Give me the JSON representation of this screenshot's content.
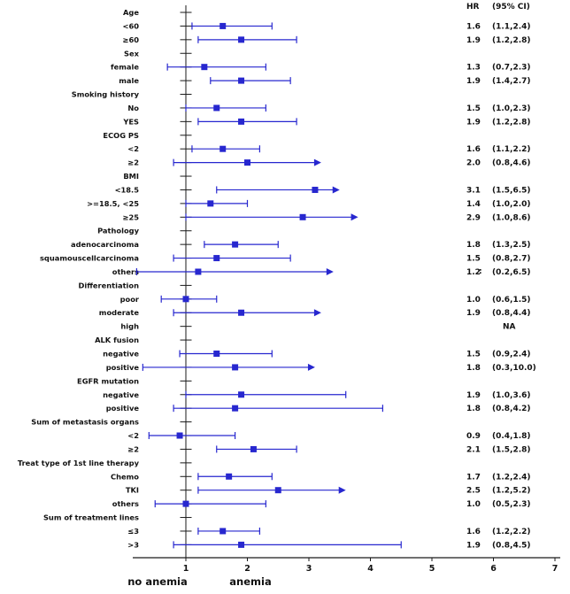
{
  "figure": {
    "hr_header": {
      "hr": "HR",
      "ci": "(95% CI)"
    },
    "group_labels": {
      "left": "no anemia",
      "right": "anemia"
    }
  },
  "chart_data": {
    "type": "forest",
    "accent_color": "#2727cf",
    "axis_color": "#1a1a1a",
    "reference_line": 1,
    "x_axis": {
      "ticks": [
        1,
        2,
        3,
        4,
        5,
        6,
        7
      ],
      "min": 0.15,
      "max": 7.2
    },
    "hr_header": {
      "hr": "HR",
      "ci": "(95% CI)"
    },
    "group_labels": {
      "left": "no anemia",
      "right": "anemia"
    },
    "rows": [
      {
        "label": "Age",
        "type": "header"
      },
      {
        "label": "<60",
        "type": "item",
        "hr": "1.6",
        "ci": "(1.1,2.4)",
        "low": 1.1,
        "point": 1.6,
        "high": 2.4,
        "arrow": false
      },
      {
        "label": "≥60",
        "type": "item",
        "hr": "1.9",
        "ci": "(1.2,2.8)",
        "low": 1.2,
        "point": 1.9,
        "high": 2.8,
        "arrow": false
      },
      {
        "label": "Sex",
        "type": "header"
      },
      {
        "label": "female",
        "type": "item",
        "hr": "1.3",
        "ci": "(0.7,2.3)",
        "low": 0.7,
        "point": 1.3,
        "high": 2.3,
        "arrow": false
      },
      {
        "label": "male",
        "type": "item",
        "hr": "1.9",
        "ci": "(1.4,2.7)",
        "low": 1.4,
        "point": 1.9,
        "high": 2.7,
        "arrow": false
      },
      {
        "label": "Smoking history",
        "type": "header"
      },
      {
        "label": "No",
        "type": "item",
        "hr": "1.5",
        "ci": "(1.0,2.3)",
        "low": 1.0,
        "point": 1.5,
        "high": 2.3,
        "arrow": false
      },
      {
        "label": "YES",
        "type": "item",
        "hr": "1.9",
        "ci": "(1.2,2.8)",
        "low": 1.2,
        "point": 1.9,
        "high": 2.8,
        "arrow": false
      },
      {
        "label": "ECOG PS",
        "type": "header"
      },
      {
        "label": "<2",
        "type": "item",
        "hr": "1.6",
        "ci": "(1.1,2.2)",
        "low": 1.1,
        "point": 1.6,
        "high": 2.2,
        "arrow": false
      },
      {
        "label": "≥2",
        "type": "item",
        "hr": "2.0",
        "ci": "(0.8,4.6)",
        "low": 0.8,
        "point": 2.0,
        "high": 3.2,
        "arrow": true
      },
      {
        "label": "BMI",
        "type": "header"
      },
      {
        "label": "<18.5",
        "type": "item",
        "hr": "3.1",
        "ci": "(1.5,6.5)",
        "low": 1.5,
        "point": 3.1,
        "high": 3.5,
        "arrow": true
      },
      {
        "label": ">=18.5, <25",
        "type": "item",
        "hr": "1.4",
        "ci": "(1.0,2.0)",
        "low": 1.0,
        "point": 1.4,
        "high": 2.0,
        "arrow": false
      },
      {
        "label": "≥25",
        "type": "item",
        "hr": "2.9",
        "ci": "(1.0,8.6)",
        "low": 1.0,
        "point": 2.9,
        "high": 3.8,
        "arrow": true
      },
      {
        "label": "Pathology",
        "type": "header"
      },
      {
        "label": "adenocarcinoma",
        "type": "item",
        "hr": "1.8",
        "ci": "(1.3,2.5)",
        "low": 1.3,
        "point": 1.8,
        "high": 2.5,
        "arrow": false
      },
      {
        "label": "squamouscellcarcinoma",
        "type": "item",
        "hr": "1.5",
        "ci": "(0.8,2.7)",
        "low": 0.8,
        "point": 1.5,
        "high": 2.7,
        "arrow": false
      },
      {
        "label": "others",
        "type": "item",
        "hr": "1.2",
        "ci": "(0.2,6.5)",
        "low": 0.2,
        "point": 1.2,
        "high": 3.4,
        "arrow": true,
        "stray": ":"
      },
      {
        "label": "Differentiation",
        "type": "header"
      },
      {
        "label": "poor",
        "type": "item",
        "hr": "1.0",
        "ci": "(0.6,1.5)",
        "low": 0.6,
        "point": 1.0,
        "high": 1.5,
        "arrow": false
      },
      {
        "label": "moderate",
        "type": "item",
        "hr": "1.9",
        "ci": "(0.8,4.4)",
        "low": 0.8,
        "point": 1.9,
        "high": 3.2,
        "arrow": true
      },
      {
        "label": "high",
        "type": "item",
        "hr": "",
        "ci": "NA",
        "na": true
      },
      {
        "label": "ALK fusion",
        "type": "header"
      },
      {
        "label": "negative",
        "type": "item",
        "hr": "1.5",
        "ci": "(0.9,2.4)",
        "low": 0.9,
        "point": 1.5,
        "high": 2.4,
        "arrow": false
      },
      {
        "label": "positive",
        "type": "item",
        "hr": "1.8",
        "ci": "(0.3,10.0)",
        "low": 0.3,
        "point": 1.8,
        "high": 3.1,
        "arrow": true
      },
      {
        "label": "EGFR mutation",
        "type": "header"
      },
      {
        "label": "negative",
        "type": "item",
        "hr": "1.9",
        "ci": "(1.0,3.6)",
        "low": 1.0,
        "point": 1.9,
        "high": 3.6,
        "arrow": false
      },
      {
        "label": "positive",
        "type": "item",
        "hr": "1.8",
        "ci": "(0.8,4.2)",
        "low": 0.8,
        "point": 1.8,
        "high": 4.2,
        "arrow": false
      },
      {
        "label": "Sum of metastasis organs",
        "type": "header"
      },
      {
        "label": "<2",
        "type": "item",
        "hr": "0.9",
        "ci": "(0.4,1.8)",
        "low": 0.4,
        "point": 0.9,
        "high": 1.8,
        "arrow": false
      },
      {
        "label": "≥2",
        "type": "item",
        "hr": "2.1",
        "ci": "(1.5,2.8)",
        "low": 1.5,
        "point": 2.1,
        "high": 2.8,
        "arrow": false
      },
      {
        "label": "Treat type of 1st line therapy",
        "type": "header"
      },
      {
        "label": "Chemo",
        "type": "item",
        "hr": "1.7",
        "ci": "(1.2,2.4)",
        "low": 1.2,
        "point": 1.7,
        "high": 2.4,
        "arrow": false
      },
      {
        "label": "TKI",
        "type": "item",
        "hr": "2.5",
        "ci": "(1.2,5.2)",
        "low": 1.2,
        "point": 2.5,
        "high": 3.6,
        "arrow": true
      },
      {
        "label": "others",
        "type": "item",
        "hr": "1.0",
        "ci": "(0.5,2.3)",
        "low": 0.5,
        "point": 1.0,
        "high": 2.3,
        "arrow": false
      },
      {
        "label": "Sum of treatment lines",
        "type": "header"
      },
      {
        "label": "≤3",
        "type": "item",
        "hr": "1.6",
        "ci": "(1.2,2.2)",
        "low": 1.2,
        "point": 1.6,
        "high": 2.2,
        "arrow": false
      },
      {
        "label": ">3",
        "type": "item",
        "hr": "1.9",
        "ci": "(0.8,4.5)",
        "low": 0.8,
        "point": 1.9,
        "high": 4.5,
        "arrow": false
      }
    ]
  }
}
